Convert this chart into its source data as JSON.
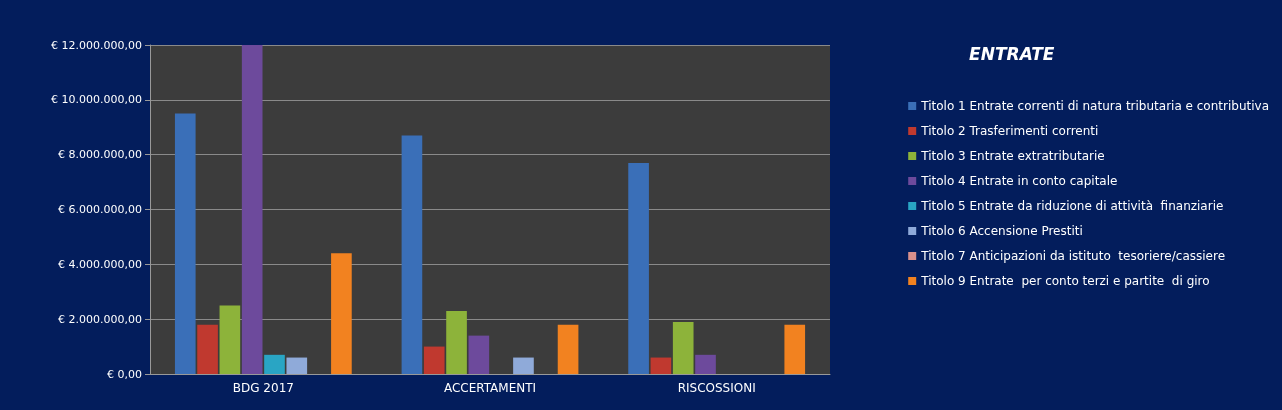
{
  "chart_data": {
    "type": "bar",
    "title": "ENTRATE",
    "categories": [
      "BDG 2017",
      "ACCERTAMENTI",
      "RISCOSSIONI"
    ],
    "series": [
      {
        "name": "Titolo 1 Entrate correnti di natura tributaria e contributiva",
        "color": "#3a6fb8",
        "values": [
          9500000,
          8700000,
          7700000
        ]
      },
      {
        "name": "Titolo 2 Trasferimenti correnti",
        "color": "#c0392f",
        "values": [
          1800000,
          1000000,
          600000
        ]
      },
      {
        "name": "Titolo 3 Entrate extratributarie",
        "color": "#8db33a",
        "values": [
          2500000,
          2300000,
          1900000
        ]
      },
      {
        "name": "Titolo 4 Entrate in conto capitale",
        "color": "#6d4a9c",
        "values": [
          12000000,
          1400000,
          700000
        ]
      },
      {
        "name": "Titolo 5 Entrate da riduzione di attività  finanziarie",
        "color": "#29a5c4",
        "values": [
          700000,
          0,
          0
        ]
      },
      {
        "name": "Titolo 6 Accensione Prestiti",
        "color": "#8faad9",
        "values": [
          600000,
          600000,
          0
        ]
      },
      {
        "name": "Titolo 7 Anticipazioni da istituto  tesoriere/cassiere",
        "color": "#d9908c",
        "values": [
          0,
          0,
          0
        ]
      },
      {
        "name": "Titolo 9 Entrate  per conto terzi e partite  di giro",
        "color": "#f28220",
        "values": [
          4400000,
          1800000,
          1800000
        ]
      }
    ],
    "ylim": [
      0,
      12000000
    ],
    "yticks": [
      {
        "value": 0,
        "label": "€ 0,00"
      },
      {
        "value": 2000000,
        "label": "€ 2.000.000,00"
      },
      {
        "value": 4000000,
        "label": "€ 4.000.000,00"
      },
      {
        "value": 6000000,
        "label": "€ 6.000.000,00"
      },
      {
        "value": 8000000,
        "label": "€ 8.000.000,00"
      },
      {
        "value": 10000000,
        "label": "€ 10.000.000,00"
      },
      {
        "value": 12000000,
        "label": "€ 12.000.000,00"
      }
    ],
    "grid": true,
    "legend": "right"
  }
}
